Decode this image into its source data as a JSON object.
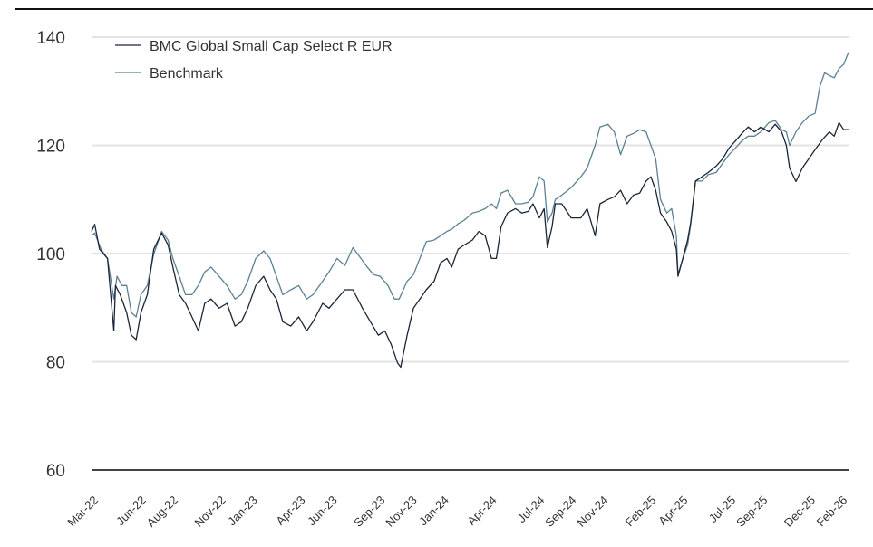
{
  "chart_data": {
    "type": "line",
    "title": "",
    "xlabel": "",
    "ylabel": "",
    "ylim": [
      60,
      140
    ],
    "yticks": [
      60,
      80,
      100,
      120,
      140
    ],
    "grid": true,
    "legend_position": "top-left",
    "x_unit": "months since Mar-22",
    "xlim": [
      0,
      47.5
    ],
    "x_tick_labels": [
      {
        "t": 0,
        "label": "Mar-22"
      },
      {
        "t": 3,
        "label": "Jun-22"
      },
      {
        "t": 5,
        "label": "Aug-22"
      },
      {
        "t": 8,
        "label": "Nov-22"
      },
      {
        "t": 10,
        "label": "Jan-23"
      },
      {
        "t": 13,
        "label": "Apr-23"
      },
      {
        "t": 15,
        "label": "Jun-23"
      },
      {
        "t": 18,
        "label": "Sep-23"
      },
      {
        "t": 20,
        "label": "Nov-23"
      },
      {
        "t": 22,
        "label": "Jan-24"
      },
      {
        "t": 25,
        "label": "Apr-24"
      },
      {
        "t": 28,
        "label": "Jul-24"
      },
      {
        "t": 30,
        "label": "Sep-24"
      },
      {
        "t": 32,
        "label": "Nov-24"
      },
      {
        "t": 35,
        "label": "Feb-25"
      },
      {
        "t": 37,
        "label": "Apr-25"
      },
      {
        "t": 40,
        "label": "Jul-25"
      },
      {
        "t": 42,
        "label": "Sep-25"
      },
      {
        "t": 45,
        "label": "Dec-25"
      },
      {
        "t": 47,
        "label": "Feb-26"
      }
    ],
    "series": [
      {
        "name": "BMC Global Small Cap Select R EUR",
        "color": "#1b2638",
        "points": [
          [
            0.0,
            104.1
          ],
          [
            0.2,
            105.4
          ],
          [
            0.5,
            100.8
          ],
          [
            1.0,
            99.1
          ],
          [
            1.4,
            85.7
          ],
          [
            1.5,
            94.1
          ],
          [
            1.8,
            92.4
          ],
          [
            2.2,
            89.1
          ],
          [
            2.5,
            84.9
          ],
          [
            2.8,
            84.1
          ],
          [
            3.1,
            89.1
          ],
          [
            3.5,
            92.4
          ],
          [
            3.9,
            100.8
          ],
          [
            4.4,
            103.8
          ],
          [
            4.8,
            101.6
          ],
          [
            5.1,
            97.5
          ],
          [
            5.5,
            92.4
          ],
          [
            5.9,
            90.8
          ],
          [
            6.3,
            88.3
          ],
          [
            6.7,
            85.7
          ],
          [
            7.1,
            90.8
          ],
          [
            7.5,
            91.6
          ],
          [
            8.0,
            89.9
          ],
          [
            8.5,
            90.8
          ],
          [
            9.0,
            86.6
          ],
          [
            9.4,
            87.4
          ],
          [
            9.8,
            89.9
          ],
          [
            10.3,
            94.1
          ],
          [
            10.8,
            95.8
          ],
          [
            11.2,
            93.3
          ],
          [
            11.6,
            91.6
          ],
          [
            12.0,
            87.4
          ],
          [
            12.5,
            86.6
          ],
          [
            13.0,
            88.3
          ],
          [
            13.5,
            85.7
          ],
          [
            13.9,
            87.4
          ],
          [
            14.5,
            90.8
          ],
          [
            14.9,
            89.9
          ],
          [
            15.4,
            91.6
          ],
          [
            15.9,
            93.3
          ],
          [
            16.4,
            93.3
          ],
          [
            17.0,
            89.9
          ],
          [
            17.5,
            87.4
          ],
          [
            18.0,
            84.9
          ],
          [
            18.4,
            85.7
          ],
          [
            18.8,
            83.2
          ],
          [
            19.2,
            79.8
          ],
          [
            19.4,
            79.0
          ],
          [
            19.8,
            84.9
          ],
          [
            20.2,
            89.9
          ],
          [
            20.6,
            91.6
          ],
          [
            21.0,
            93.3
          ],
          [
            21.5,
            94.9
          ],
          [
            21.9,
            98.3
          ],
          [
            22.3,
            99.1
          ],
          [
            22.6,
            97.5
          ],
          [
            23.0,
            100.8
          ],
          [
            23.4,
            101.6
          ],
          [
            23.9,
            102.5
          ],
          [
            24.3,
            104.1
          ],
          [
            24.7,
            103.3
          ],
          [
            25.1,
            99.1
          ],
          [
            25.4,
            99.1
          ],
          [
            25.7,
            105.0
          ],
          [
            26.1,
            107.5
          ],
          [
            26.6,
            108.3
          ],
          [
            27.0,
            107.5
          ],
          [
            27.4,
            107.8
          ],
          [
            27.7,
            109.2
          ],
          [
            28.1,
            106.6
          ],
          [
            28.4,
            108.3
          ],
          [
            28.6,
            101.1
          ],
          [
            28.9,
            105.0
          ],
          [
            29.1,
            109.2
          ],
          [
            29.5,
            109.2
          ],
          [
            30.1,
            106.6
          ],
          [
            30.7,
            106.6
          ],
          [
            31.1,
            108.3
          ],
          [
            31.6,
            103.3
          ],
          [
            31.9,
            109.2
          ],
          [
            32.4,
            110.0
          ],
          [
            32.8,
            110.5
          ],
          [
            33.2,
            111.7
          ],
          [
            33.6,
            109.2
          ],
          [
            34.0,
            110.8
          ],
          [
            34.4,
            111.2
          ],
          [
            34.8,
            113.4
          ],
          [
            35.1,
            114.2
          ],
          [
            35.4,
            111.7
          ],
          [
            35.7,
            107.5
          ],
          [
            36.1,
            105.8
          ],
          [
            36.4,
            104.1
          ],
          [
            36.7,
            100.8
          ],
          [
            36.8,
            95.8
          ],
          [
            37.1,
            99.1
          ],
          [
            37.4,
            102.5
          ],
          [
            37.6,
            105.8
          ],
          [
            37.9,
            113.4
          ],
          [
            38.3,
            114.2
          ],
          [
            38.7,
            115.0
          ],
          [
            39.2,
            116.2
          ],
          [
            39.6,
            117.5
          ],
          [
            40.0,
            119.5
          ],
          [
            40.4,
            120.8
          ],
          [
            40.8,
            122.2
          ],
          [
            41.2,
            123.4
          ],
          [
            41.6,
            122.5
          ],
          [
            42.0,
            123.4
          ],
          [
            42.5,
            122.5
          ],
          [
            42.9,
            123.9
          ],
          [
            43.3,
            122.5
          ],
          [
            43.6,
            120.0
          ],
          [
            43.8,
            115.8
          ],
          [
            44.2,
            113.3
          ],
          [
            44.6,
            115.8
          ],
          [
            45.0,
            117.5
          ],
          [
            45.4,
            119.2
          ],
          [
            45.9,
            121.2
          ],
          [
            46.3,
            122.5
          ],
          [
            46.6,
            121.7
          ],
          [
            46.9,
            124.2
          ],
          [
            47.2,
            122.9
          ],
          [
            47.5,
            122.9
          ]
        ]
      },
      {
        "name": "Benchmark",
        "color": "#5c8196",
        "points": [
          [
            0.0,
            103.3
          ],
          [
            0.2,
            103.8
          ],
          [
            0.6,
            100.8
          ],
          [
            1.0,
            99.1
          ],
          [
            1.4,
            91.6
          ],
          [
            1.6,
            95.8
          ],
          [
            1.9,
            94.1
          ],
          [
            2.2,
            94.1
          ],
          [
            2.5,
            89.1
          ],
          [
            2.8,
            88.3
          ],
          [
            3.1,
            92.4
          ],
          [
            3.5,
            94.1
          ],
          [
            3.9,
            99.9
          ],
          [
            4.4,
            104.1
          ],
          [
            4.8,
            102.5
          ],
          [
            5.1,
            99.1
          ],
          [
            5.5,
            95.8
          ],
          [
            5.9,
            92.4
          ],
          [
            6.3,
            92.4
          ],
          [
            6.7,
            94.1
          ],
          [
            7.1,
            96.6
          ],
          [
            7.5,
            97.5
          ],
          [
            8.0,
            95.8
          ],
          [
            8.5,
            94.1
          ],
          [
            9.0,
            91.6
          ],
          [
            9.4,
            92.4
          ],
          [
            9.8,
            94.9
          ],
          [
            10.3,
            99.1
          ],
          [
            10.8,
            100.5
          ],
          [
            11.2,
            99.1
          ],
          [
            11.6,
            95.8
          ],
          [
            12.0,
            92.4
          ],
          [
            12.5,
            93.3
          ],
          [
            13.0,
            94.1
          ],
          [
            13.5,
            91.6
          ],
          [
            13.9,
            92.4
          ],
          [
            14.5,
            94.9
          ],
          [
            14.9,
            96.6
          ],
          [
            15.4,
            99.1
          ],
          [
            15.9,
            97.8
          ],
          [
            16.4,
            101.1
          ],
          [
            16.9,
            99.1
          ],
          [
            17.3,
            97.5
          ],
          [
            17.7,
            96.1
          ],
          [
            18.1,
            95.8
          ],
          [
            18.6,
            94.1
          ],
          [
            19.0,
            91.6
          ],
          [
            19.3,
            91.6
          ],
          [
            19.8,
            94.9
          ],
          [
            20.2,
            96.1
          ],
          [
            20.6,
            99.1
          ],
          [
            21.0,
            102.2
          ],
          [
            21.5,
            102.5
          ],
          [
            21.9,
            103.3
          ],
          [
            22.3,
            104.1
          ],
          [
            22.6,
            104.5
          ],
          [
            23.0,
            105.5
          ],
          [
            23.4,
            106.2
          ],
          [
            23.9,
            107.5
          ],
          [
            24.3,
            107.8
          ],
          [
            24.7,
            108.3
          ],
          [
            25.1,
            109.2
          ],
          [
            25.4,
            108.3
          ],
          [
            25.7,
            111.2
          ],
          [
            26.1,
            111.7
          ],
          [
            26.6,
            109.2
          ],
          [
            27.0,
            109.2
          ],
          [
            27.4,
            109.5
          ],
          [
            27.7,
            110.5
          ],
          [
            28.1,
            114.2
          ],
          [
            28.4,
            113.4
          ],
          [
            28.6,
            105.8
          ],
          [
            28.9,
            107.5
          ],
          [
            29.1,
            110.0
          ],
          [
            29.5,
            110.8
          ],
          [
            30.1,
            112.2
          ],
          [
            30.7,
            114.2
          ],
          [
            31.1,
            115.8
          ],
          [
            31.6,
            120.0
          ],
          [
            31.9,
            123.4
          ],
          [
            32.4,
            123.9
          ],
          [
            32.8,
            122.5
          ],
          [
            33.2,
            118.3
          ],
          [
            33.6,
            121.7
          ],
          [
            34.0,
            122.2
          ],
          [
            34.4,
            122.9
          ],
          [
            34.8,
            122.5
          ],
          [
            35.1,
            120.0
          ],
          [
            35.4,
            117.5
          ],
          [
            35.7,
            110.0
          ],
          [
            36.1,
            107.5
          ],
          [
            36.4,
            108.3
          ],
          [
            36.7,
            103.3
          ],
          [
            36.8,
            96.1
          ],
          [
            37.1,
            99.1
          ],
          [
            37.4,
            101.6
          ],
          [
            37.6,
            105.5
          ],
          [
            37.9,
            113.4
          ],
          [
            38.3,
            113.4
          ],
          [
            38.7,
            114.6
          ],
          [
            39.2,
            115.0
          ],
          [
            39.6,
            116.7
          ],
          [
            40.0,
            118.3
          ],
          [
            40.4,
            119.5
          ],
          [
            40.8,
            120.8
          ],
          [
            41.2,
            121.7
          ],
          [
            41.6,
            121.7
          ],
          [
            42.0,
            122.5
          ],
          [
            42.5,
            124.2
          ],
          [
            42.9,
            124.6
          ],
          [
            43.3,
            122.9
          ],
          [
            43.6,
            122.5
          ],
          [
            43.8,
            120.0
          ],
          [
            44.2,
            122.5
          ],
          [
            44.6,
            124.2
          ],
          [
            45.0,
            125.4
          ],
          [
            45.4,
            125.9
          ],
          [
            45.7,
            130.9
          ],
          [
            46.0,
            133.4
          ],
          [
            46.3,
            132.9
          ],
          [
            46.6,
            132.5
          ],
          [
            46.9,
            134.2
          ],
          [
            47.2,
            135.0
          ],
          [
            47.5,
            137.2
          ]
        ]
      }
    ]
  }
}
